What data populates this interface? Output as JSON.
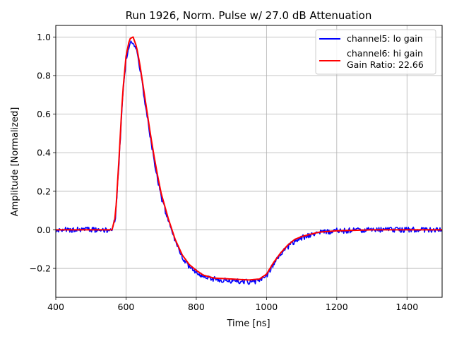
{
  "chart_data": {
    "type": "line",
    "title": "Run 1926, Norm. Pulse w/ 27.0 dB Attenuation",
    "xlabel": "Time [ns]",
    "ylabel": "Amplitude [Normalized]",
    "xlim": [
      400,
      1500
    ],
    "ylim": [
      -0.35,
      1.06
    ],
    "xticks": [
      400,
      600,
      800,
      1000,
      1200,
      1400
    ],
    "xtick_labels": [
      "400",
      "600",
      "800",
      "1000",
      "1200",
      "1400"
    ],
    "yticks": [
      -0.2,
      0.0,
      0.2,
      0.4,
      0.6,
      0.8,
      1.0
    ],
    "ytick_labels": [
      "−0.2",
      "0.0",
      "0.2",
      "0.4",
      "0.6",
      "0.8",
      "1.0"
    ],
    "grid": true,
    "legend_position": "top-right",
    "legend_extra_line": "Gain Ratio: 22.66",
    "series": [
      {
        "name": "channel5: lo gain",
        "color": "#0000ff",
        "noisy": true,
        "x": [
          400,
          560,
          570,
          580,
          590,
          600,
          610,
          620,
          630,
          640,
          650,
          660,
          670,
          680,
          690,
          700,
          720,
          740,
          760,
          780,
          800,
          820,
          850,
          900,
          950,
          980,
          1000,
          1020,
          1040,
          1060,
          1080,
          1100,
          1120,
          1150,
          1200,
          1300,
          1500
        ],
        "y": [
          0.0,
          0.0,
          0.06,
          0.35,
          0.68,
          0.88,
          0.97,
          0.98,
          0.93,
          0.83,
          0.71,
          0.59,
          0.47,
          0.36,
          0.26,
          0.17,
          0.05,
          -0.06,
          -0.14,
          -0.19,
          -0.22,
          -0.24,
          -0.255,
          -0.265,
          -0.27,
          -0.265,
          -0.24,
          -0.18,
          -0.13,
          -0.09,
          -0.06,
          -0.04,
          -0.03,
          -0.015,
          -0.005,
          0.0,
          0.0
        ]
      },
      {
        "name": "channel6: hi gain",
        "color": "#ff0000",
        "noisy": false,
        "x": [
          400,
          560,
          570,
          580,
          590,
          600,
          610,
          620,
          630,
          640,
          650,
          660,
          670,
          680,
          690,
          700,
          720,
          740,
          760,
          780,
          800,
          820,
          850,
          900,
          950,
          980,
          1000,
          1020,
          1040,
          1060,
          1080,
          1100,
          1120,
          1150,
          1200,
          1300,
          1500
        ],
        "y": [
          0.0,
          0.0,
          0.07,
          0.37,
          0.7,
          0.9,
          0.99,
          1.0,
          0.95,
          0.85,
          0.73,
          0.61,
          0.49,
          0.38,
          0.28,
          0.19,
          0.06,
          -0.05,
          -0.13,
          -0.18,
          -0.21,
          -0.235,
          -0.25,
          -0.255,
          -0.26,
          -0.255,
          -0.23,
          -0.17,
          -0.12,
          -0.08,
          -0.05,
          -0.035,
          -0.025,
          -0.012,
          -0.005,
          0.0,
          0.0
        ]
      }
    ]
  }
}
